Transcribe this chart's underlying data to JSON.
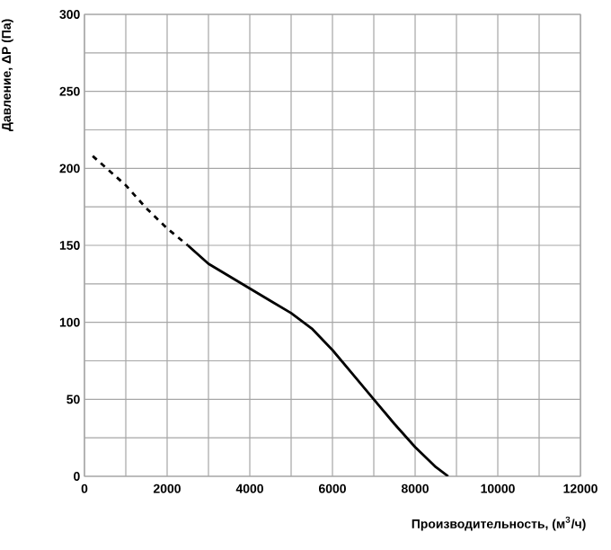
{
  "chart_data": {
    "type": "line",
    "xlabel": "Производительность, (м$^{3}$/ч)",
    "ylabel": "Давление, ΔP (Па)",
    "series": [
      {
        "color": "#000000",
        "line_style": "dashed",
        "x": [
          200,
          1000,
          1500,
          2000,
          2500
        ],
        "values": [
          208,
          189,
          174,
          161,
          150
        ]
      },
      {
        "color": "#000000",
        "line_style": "solid",
        "x": [
          2500,
          3000,
          3500,
          4000,
          4500,
          5000,
          5500,
          6000,
          6500,
          7000,
          7500,
          8000,
          8500,
          8800
        ],
        "values": [
          150,
          138,
          130,
          122,
          114,
          106,
          96,
          82,
          66,
          50,
          34,
          19,
          6,
          0
        ]
      }
    ],
    "xlim": [
      0,
      12000
    ],
    "ylim": [
      0,
      300
    ],
    "xticks": [
      0,
      {
        "value": 1000,
        "label": null
      },
      2000,
      {
        "value": 3000,
        "label": null
      },
      4000,
      {
        "value": 5000,
        "label": null
      },
      6000,
      {
        "value": 7000,
        "label": null
      },
      8000,
      {
        "value": 9000,
        "label": null
      },
      10000,
      {
        "value": 11000,
        "label": null
      },
      12000
    ],
    "yticks": [
      0,
      {
        "value": 25,
        "label": null
      },
      50,
      {
        "value": 75,
        "label": null
      },
      100,
      {
        "value": 125,
        "label": null
      },
      150,
      {
        "value": 175,
        "label": null
      },
      200,
      {
        "value": 225,
        "label": null
      },
      250,
      {
        "value": 275,
        "label": null
      },
      300
    ],
    "grid": true,
    "marker": "none"
  }
}
